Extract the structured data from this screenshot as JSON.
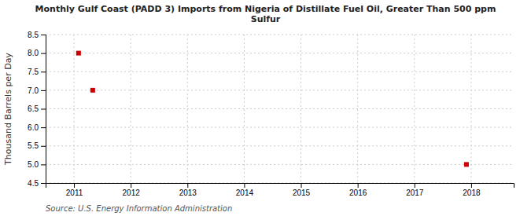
{
  "chart_data": {
    "type": "scatter",
    "title": "Monthly Gulf Coast (PADD 3) Imports from Nigeria of Distillate Fuel Oil, Greater Than 500 ppm\nSulfur",
    "ylabel": "Thousand Barrels per Day",
    "source": "Source: U.S. Energy Information Administration",
    "x": [
      2011.08,
      2011.33,
      2017.917
    ],
    "values": [
      8.0,
      7.0,
      5.0
    ],
    "color": "#cc0000",
    "marker": "square",
    "xlim": [
      2010.5,
      2018.75
    ],
    "ylim": [
      4.5,
      8.5
    ],
    "xticks": [
      2011,
      2012,
      2013,
      2014,
      2015,
      2016,
      2017,
      2018
    ],
    "yticks": [
      4.5,
      {
        "value": 5.0,
        "label": "5.0"
      },
      5.5,
      {
        "value": 6.0,
        "label": "6.0"
      },
      6.5,
      {
        "value": 7.0,
        "label": "7.0"
      },
      7.5,
      {
        "value": 8.0,
        "label": "8.0"
      },
      8.5
    ],
    "grid": true
  }
}
